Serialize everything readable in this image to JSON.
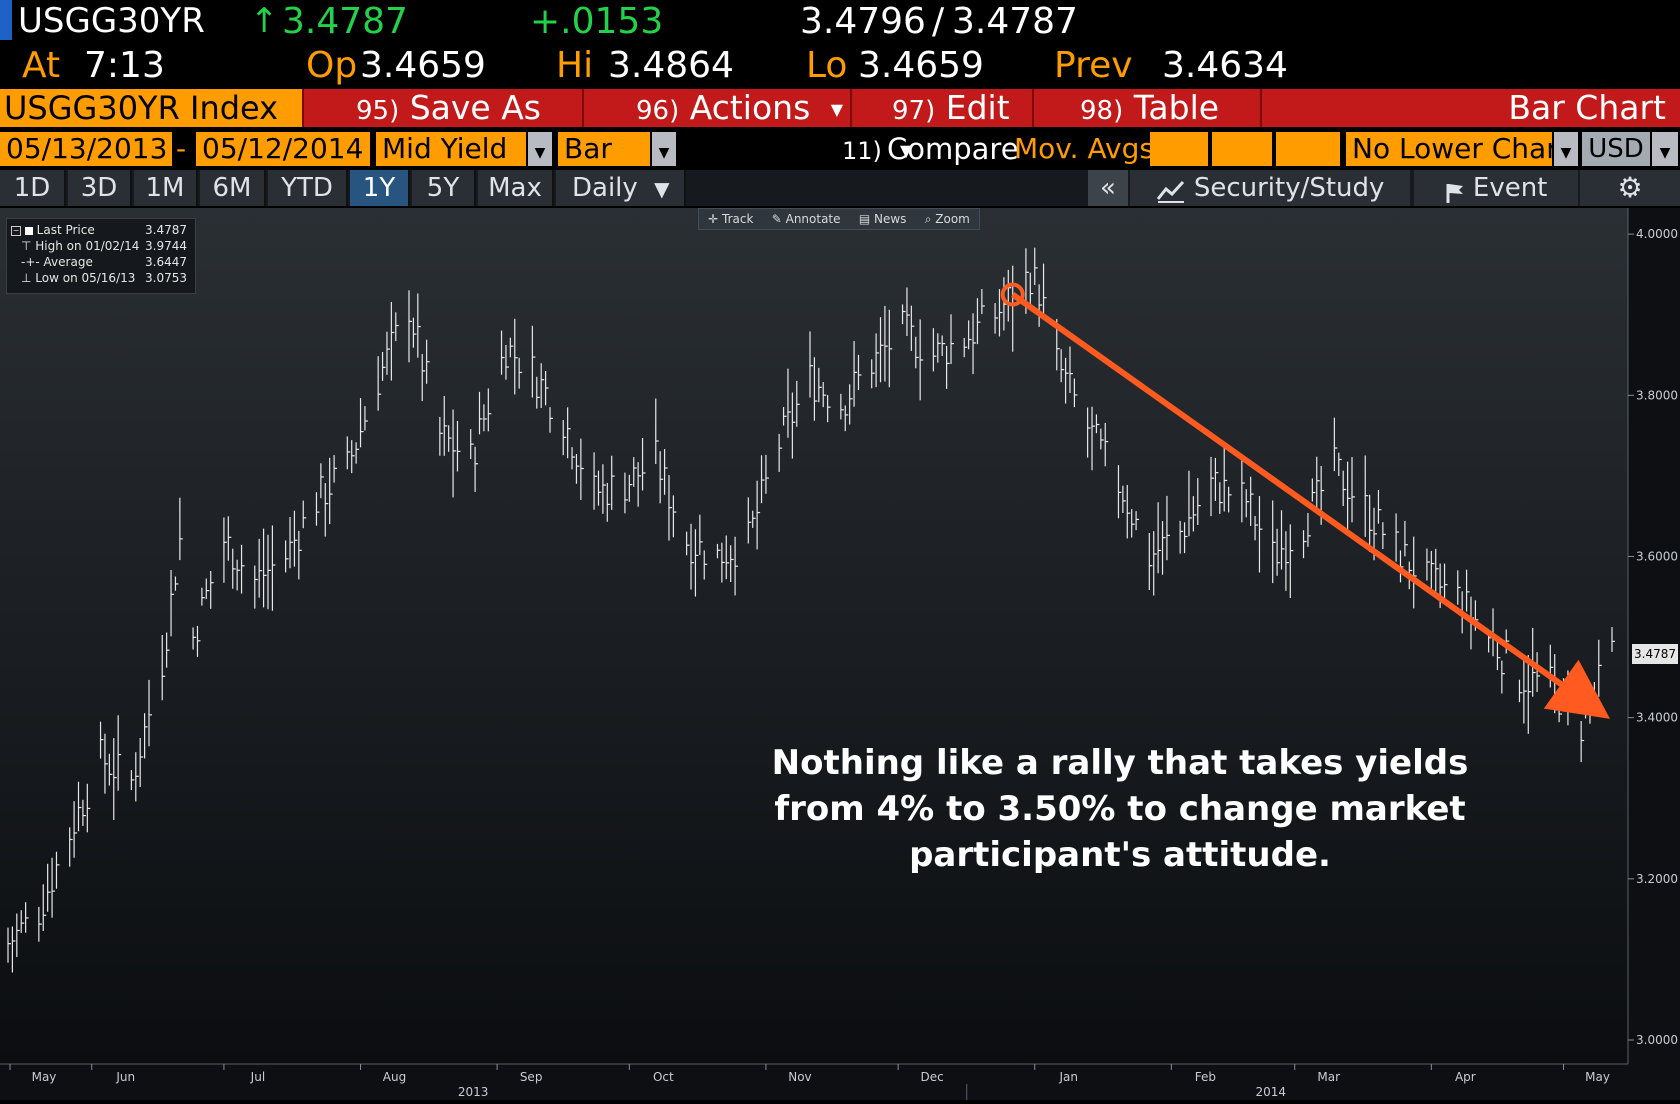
{
  "header": {
    "ticker": "USGG30YR",
    "last_arrow": "↑",
    "last_value": "3.4787",
    "net_change": "+.0153",
    "bid": "3.4796",
    "ask_sep": "/",
    "ask": "3.4787",
    "at_label": "At",
    "at_time": "7:13",
    "open_label": "Op",
    "open_value": "3.4659",
    "high_label": "Hi",
    "high_value": "3.4864",
    "low_label": "Lo",
    "low_value": "3.4659",
    "prev_label": "Prev",
    "prev_value": "3.4634"
  },
  "menubar": {
    "security": "USGG30YR Index",
    "save_num": "95)",
    "save_label": "Save As",
    "actions_num": "96)",
    "actions_label": "Actions",
    "edit_num": "97)",
    "edit_label": "Edit",
    "table_num": "98)",
    "table_label": "Table",
    "chart_type_title": "Bar Chart"
  },
  "controls": {
    "start_date": "05/13/2013",
    "date_sep": "-",
    "end_date": "05/12/2014",
    "field": "Mid Yield",
    "style": "Bar",
    "compare_num": "11)",
    "compare_label": "Compare",
    "mov_avgs": "Mov. Avgs",
    "lower_chart": "No Lower Chart",
    "currency": "USD"
  },
  "tabs": {
    "items": [
      "1D",
      "3D",
      "1M",
      "6M",
      "YTD",
      "1Y",
      "5Y",
      "Max"
    ],
    "active": "1Y",
    "period": "Daily",
    "collapse": "«",
    "security_study": "Security/Study",
    "event": "Event"
  },
  "chart_tools": [
    "Track",
    "Annotate",
    "News",
    "Zoom"
  ],
  "legend": {
    "last_price_label": "Last Price",
    "last_price_value": "3.4787",
    "high_label": "High on 01/02/14",
    "high_value": "3.9744",
    "average_label": "Average",
    "average_value": "3.6447",
    "low_label": "Low on 05/16/13",
    "low_value": "3.0753"
  },
  "annotation": {
    "line1": "Nothing like a rally that takes yields",
    "line2": "from 4% to 3.50% to change market",
    "line3": "participant's attitude.",
    "arrow_color": "#ff5a1f"
  },
  "colors": {
    "amber": "#ff9c00",
    "green": "#24d24a",
    "menu_red": "#c21a1a",
    "bars": "#e8e8e8",
    "chart_bg_top": "#2a2f34",
    "chart_bg_bottom": "#0b0d10"
  },
  "chart_data": {
    "type": "bar",
    "bar_style": "OHLC (high-low-close)",
    "title": "",
    "xlabel": "",
    "ylabel": "",
    "ylim": [
      3.0,
      4.02
    ],
    "yticks": [
      "3.0000",
      "3.2000",
      "3.4000",
      "3.6000",
      "3.8000",
      "4.0000"
    ],
    "last_price_tag": "3.4787",
    "x_month_labels": [
      "May",
      "Jun",
      "Jul",
      "Aug",
      "Sep",
      "Oct",
      "Nov",
      "Dec",
      "Jan",
      "Feb",
      "Mar",
      "Apr",
      "May"
    ],
    "x_year_labels": [
      "2013",
      "2014"
    ],
    "legend_position": "top-left",
    "grid": false,
    "series": [
      {
        "name": "Last Price",
        "x": [
          "2013-05-13",
          "2013-05-20",
          "2013-05-28",
          "2013-06-03",
          "2013-06-10",
          "2013-06-17",
          "2013-06-21",
          "2013-06-24",
          "2013-07-01",
          "2013-07-08",
          "2013-07-15",
          "2013-07-22",
          "2013-07-29",
          "2013-08-05",
          "2013-08-12",
          "2013-08-19",
          "2013-08-26",
          "2013-09-03",
          "2013-09-09",
          "2013-09-16",
          "2013-09-23",
          "2013-09-30",
          "2013-10-07",
          "2013-10-14",
          "2013-10-21",
          "2013-10-28",
          "2013-11-04",
          "2013-11-11",
          "2013-11-18",
          "2013-11-25",
          "2013-12-02",
          "2013-12-09",
          "2013-12-16",
          "2013-12-23",
          "2013-12-31",
          "2014-01-02",
          "2014-01-06",
          "2014-01-13",
          "2014-01-21",
          "2014-01-27",
          "2014-02-03",
          "2014-02-10",
          "2014-02-18",
          "2014-02-24",
          "2014-03-03",
          "2014-03-10",
          "2014-03-17",
          "2014-03-24",
          "2014-03-31",
          "2014-04-07",
          "2014-04-14",
          "2014-04-21",
          "2014-04-28",
          "2014-05-05",
          "2014-05-12"
        ],
        "values": [
          3.12,
          3.16,
          3.27,
          3.35,
          3.32,
          3.47,
          3.62,
          3.5,
          3.62,
          3.57,
          3.6,
          3.67,
          3.71,
          3.82,
          3.91,
          3.75,
          3.72,
          3.86,
          3.83,
          3.77,
          3.68,
          3.69,
          3.72,
          3.62,
          3.6,
          3.62,
          3.74,
          3.82,
          3.79,
          3.84,
          3.88,
          3.85,
          3.87,
          3.9,
          3.95,
          3.93,
          3.84,
          3.76,
          3.68,
          3.6,
          3.63,
          3.69,
          3.67,
          3.6,
          3.64,
          3.71,
          3.66,
          3.61,
          3.57,
          3.55,
          3.5,
          3.45,
          3.44,
          3.39,
          3.48
        ]
      }
    ]
  }
}
